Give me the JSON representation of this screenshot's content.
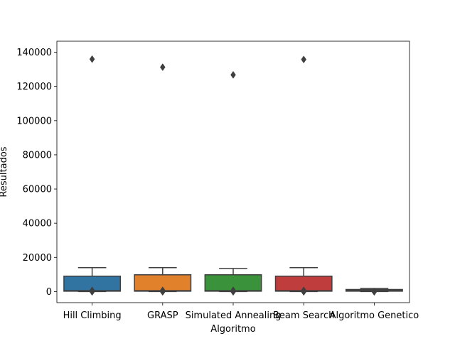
{
  "chart_data": {
    "type": "box",
    "title": "",
    "xlabel": "Algoritmo",
    "ylabel": "Resultados",
    "ylim": [
      -6500,
      146500
    ],
    "yticks": [
      0,
      20000,
      40000,
      60000,
      80000,
      100000,
      120000,
      140000
    ],
    "ytick_labels": [
      "0",
      "20000",
      "40000",
      "60000",
      "80000",
      "100000",
      "120000",
      "140000"
    ],
    "grid": false,
    "legend": "none",
    "categories": [
      "Hill Climbing",
      "GRASP",
      "Simulated Annealing",
      "Beam Search",
      "Algoritmo Genetico"
    ],
    "boxes": [
      {
        "category": "Hill Climbing",
        "color": "#3274a1",
        "whisker_low": 0,
        "q1": 200,
        "median": 500,
        "q3": 9000,
        "whisker_high": 14000,
        "outliers": [
          136000,
          700,
          -200
        ]
      },
      {
        "category": "GRASP",
        "color": "#e1812c",
        "whisker_low": 0,
        "q1": 200,
        "median": 500,
        "q3": 9800,
        "whisker_high": 14000,
        "outliers": [
          131300,
          700,
          -200
        ]
      },
      {
        "category": "Simulated Annealing",
        "color": "#3a923a",
        "whisker_low": 0,
        "q1": 200,
        "median": 500,
        "q3": 9800,
        "whisker_high": 13500,
        "outliers": [
          126800,
          700,
          -200
        ]
      },
      {
        "category": "Beam Search",
        "color": "#c03d3e",
        "whisker_low": 0,
        "q1": 200,
        "median": 500,
        "q3": 9000,
        "whisker_high": 14000,
        "outliers": [
          135800,
          700,
          -200
        ]
      },
      {
        "category": "Algoritmo Genetico",
        "color": "#9372b2",
        "whisker_low": 0,
        "q1": 200,
        "median": 800,
        "q3": 1200,
        "whisker_high": 1800,
        "outliers": [
          -200
        ]
      }
    ]
  }
}
